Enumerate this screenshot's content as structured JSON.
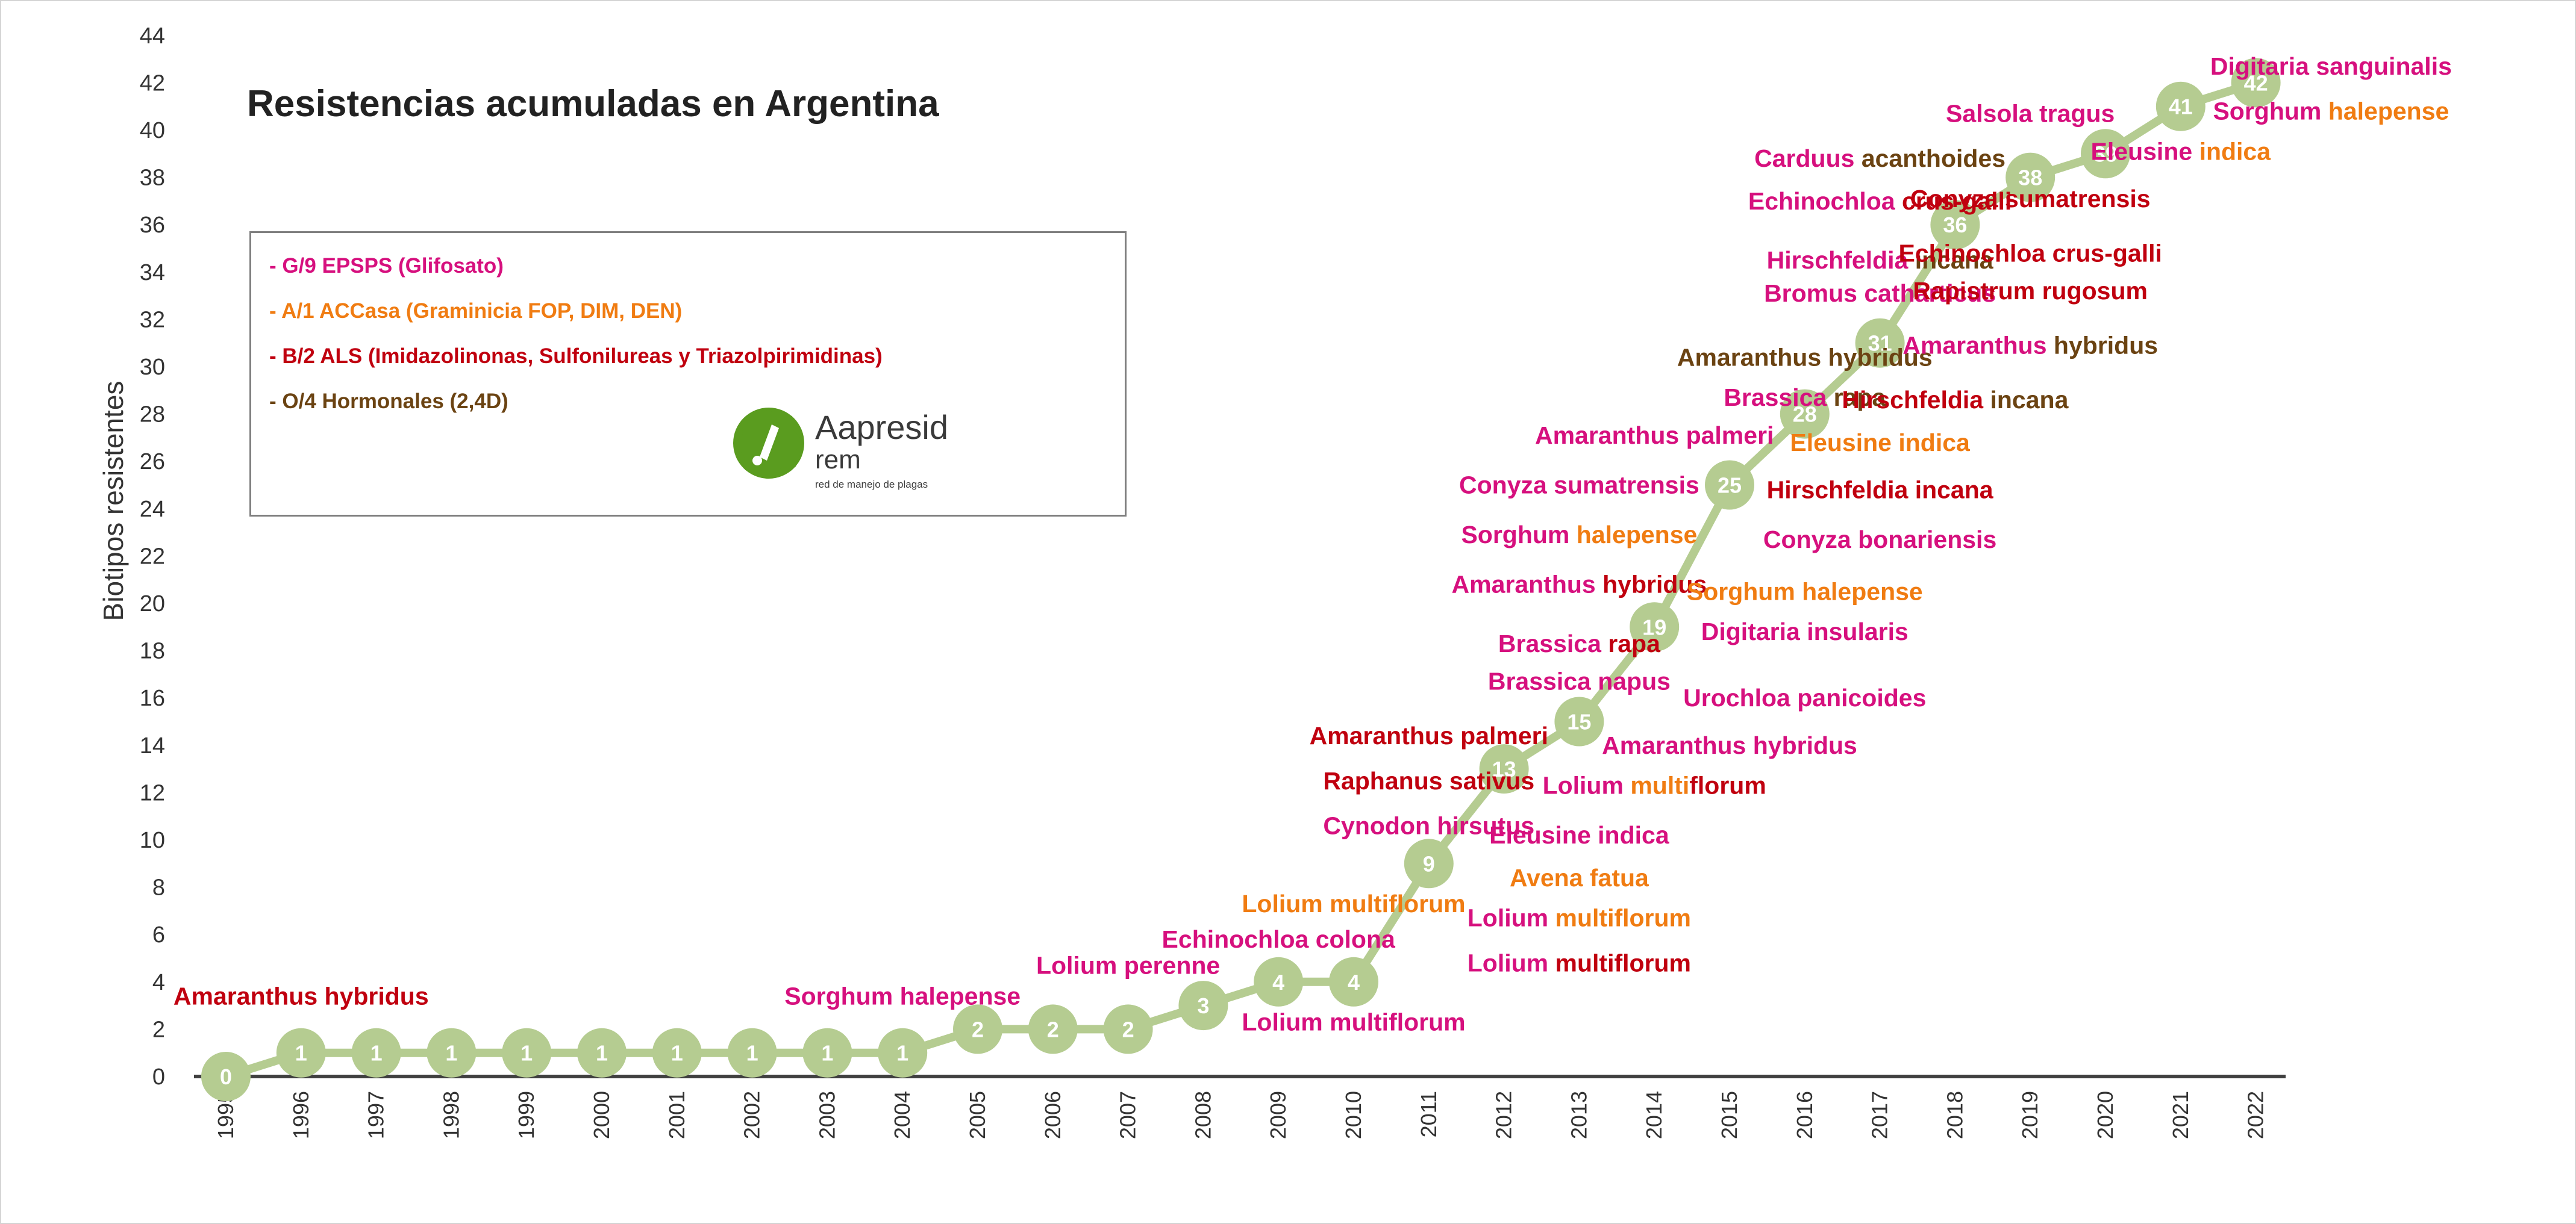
{
  "colors": {
    "glifosato": "#d6107e",
    "accasa": "#f07c12",
    "als": "#c0000f",
    "hormonales": "#6b4312",
    "line": "#b5cc91",
    "marker": "#b5cc91",
    "axis": "#404040"
  },
  "chart_data": {
    "type": "line",
    "title": "Resistencias acumuladas en Argentina",
    "xlabel": "",
    "ylabel": "Biotipos resistentes",
    "ylim": [
      0,
      44
    ],
    "yticks": [
      0,
      2,
      4,
      6,
      8,
      10,
      12,
      14,
      16,
      18,
      20,
      22,
      24,
      26,
      28,
      30,
      32,
      34,
      36,
      38,
      40,
      42,
      44
    ],
    "grid": false,
    "legend_placement": "top-left",
    "x": [
      "1995",
      "1996",
      "1997",
      "1998",
      "1999",
      "2000",
      "2001",
      "2002",
      "2003",
      "2004",
      "2005",
      "2006",
      "2007",
      "2008",
      "2009",
      "2010",
      "2011",
      "2012",
      "2013",
      "2014",
      "2015",
      "2016",
      "2017",
      "2018",
      "2019",
      "2020",
      "2021",
      "2022"
    ],
    "series": [
      {
        "values": [
          0,
          1,
          1,
          1,
          1,
          1,
          1,
          1,
          1,
          1,
          2,
          2,
          2,
          3,
          4,
          4,
          9,
          13,
          15,
          19,
          25,
          28,
          31,
          36,
          38,
          39,
          41,
          42
        ]
      }
    ],
    "legend": [
      {
        "text": "- G/9 EPSPS (Glifosato)",
        "color_key": "glifosato"
      },
      {
        "text": "- A/1 ACCasa (Graminicia FOP, DIM, DEN)",
        "color_key": "accasa"
      },
      {
        "text": "- B/2 ALS (Imidazolinonas, Sulfonilureas y Triazolpirimidinas)",
        "color_key": "als"
      },
      {
        "text": "- O/4 Hormonales (2,4D)",
        "color_key": "hormonales"
      }
    ],
    "annotations": [
      {
        "x": "1996",
        "y": 3.4,
        "parts": [
          {
            "t": "Amaranthus hybridus",
            "c": "als"
          }
        ]
      },
      {
        "x": "2004",
        "y": 3.4,
        "parts": [
          {
            "t": "Sorghum halepense",
            "c": "glifosato"
          }
        ]
      },
      {
        "x": "2007",
        "y": 4.7,
        "parts": [
          {
            "t": "Lolium perenne",
            "c": "glifosato"
          }
        ]
      },
      {
        "x": "2009",
        "y": 5.8,
        "parts": [
          {
            "t": "Echinochloa colona",
            "c": "glifosato"
          }
        ]
      },
      {
        "x": "2010",
        "y": 7.3,
        "parts": [
          {
            "t": "Lolium multiflorum",
            "c": "accasa"
          }
        ]
      },
      {
        "x": "2010",
        "y": 2.3,
        "parts": [
          {
            "t": "Lolium multiflorum",
            "c": "glifosato"
          }
        ]
      },
      {
        "x": "2011",
        "y": 10.6,
        "parts": [
          {
            "t": "Cynodon hirsutus",
            "c": "glifosato"
          }
        ]
      },
      {
        "x": "2011",
        "y": 12.5,
        "parts": [
          {
            "t": "Raphanus sativus",
            "c": "als"
          }
        ]
      },
      {
        "x": "2011",
        "y": 14.4,
        "parts": [
          {
            "t": "Amaranthus palmeri",
            "c": "als"
          }
        ]
      },
      {
        "x": "2013",
        "y": 4.8,
        "parts": [
          {
            "t": "Lolium ",
            "c": "glifosato"
          },
          {
            "t": "multiflorum",
            "c": "als"
          }
        ]
      },
      {
        "x": "2013",
        "y": 6.7,
        "parts": [
          {
            "t": "Lolium ",
            "c": "glifosato"
          },
          {
            "t": "multiflorum",
            "c": "accasa"
          }
        ]
      },
      {
        "x": "2013",
        "y": 8.4,
        "parts": [
          {
            "t": "Avena fatua",
            "c": "accasa"
          }
        ]
      },
      {
        "x": "2013",
        "y": 10.2,
        "parts": [
          {
            "t": "Eleusine indica",
            "c": "glifosato"
          }
        ]
      },
      {
        "x": "2014",
        "y": 12.3,
        "parts": [
          {
            "t": "Lolium ",
            "c": "glifosato"
          },
          {
            "t": "multi",
            "c": "accasa"
          },
          {
            "t": "florum",
            "c": "als"
          }
        ]
      },
      {
        "x": "2013",
        "y": 16.7,
        "parts": [
          {
            "t": "Brassica napus",
            "c": "glifosato"
          }
        ]
      },
      {
        "x": "2013",
        "y": 18.3,
        "parts": [
          {
            "t": "Brassica ",
            "c": "glifosato"
          },
          {
            "t": "rapa",
            "c": "als"
          }
        ]
      },
      {
        "x": "2013",
        "y": 20.8,
        "parts": [
          {
            "t": "Amaranthus ",
            "c": "glifosato"
          },
          {
            "t": "hybridus",
            "c": "als"
          }
        ]
      },
      {
        "x": "2013",
        "y": 22.9,
        "parts": [
          {
            "t": "Sorghum ",
            "c": "glifosato"
          },
          {
            "t": "halepense",
            "c": "accasa"
          }
        ]
      },
      {
        "x": "2013",
        "y": 25.0,
        "parts": [
          {
            "t": "Conyza sumatrensis",
            "c": "glifosato"
          }
        ]
      },
      {
        "x": "2014",
        "y": 27.1,
        "parts": [
          {
            "t": "Amaranthus palmeri",
            "c": "glifosato"
          }
        ]
      },
      {
        "x": "2016",
        "y": 16.0,
        "parts": [
          {
            "t": "Urochloa panicoides",
            "c": "glifosato"
          }
        ]
      },
      {
        "x": "2015",
        "y": 14.0,
        "parts": [
          {
            "t": "Amaranthus hybridus",
            "c": "glifosato"
          }
        ]
      },
      {
        "x": "2016",
        "y": 18.8,
        "parts": [
          {
            "t": "Digitaria insularis",
            "c": "glifosato"
          }
        ]
      },
      {
        "x": "2016",
        "y": 20.5,
        "parts": [
          {
            "t": "Sorghum halepense",
            "c": "accasa"
          }
        ]
      },
      {
        "x": "2017",
        "y": 22.7,
        "parts": [
          {
            "t": "Conyza bonariensis",
            "c": "glifosato"
          }
        ]
      },
      {
        "x": "2017",
        "y": 24.8,
        "parts": [
          {
            "t": "Hirschfeldia incana",
            "c": "als"
          }
        ]
      },
      {
        "x": "2017",
        "y": 26.8,
        "parts": [
          {
            "t": "Eleusine indica",
            "c": "accasa"
          }
        ]
      },
      {
        "x": "2016",
        "y": 28.7,
        "parts": [
          {
            "t": "Brassica ",
            "c": "glifosato"
          },
          {
            "t": "rapa",
            "c": "hormonales"
          }
        ]
      },
      {
        "x": "2016",
        "y": 30.4,
        "parts": [
          {
            "t": "Amaranthus hybridus",
            "c": "hormonales"
          }
        ]
      },
      {
        "x": "2018",
        "y": 28.6,
        "parts": [
          {
            "t": "Hirschfeldia ",
            "c": "als"
          },
          {
            "t": "incana",
            "c": "hormonales"
          }
        ]
      },
      {
        "x": "2019",
        "y": 30.9,
        "parts": [
          {
            "t": "Amaranthus ",
            "c": "glifosato"
          },
          {
            "t": "hybridus",
            "c": "hormonales"
          }
        ]
      },
      {
        "x": "2017",
        "y": 33.1,
        "parts": [
          {
            "t": "Bromus catharticus",
            "c": "glifosato"
          }
        ]
      },
      {
        "x": "2017",
        "y": 34.5,
        "parts": [
          {
            "t": "Hirschfeldia ",
            "c": "glifosato"
          },
          {
            "t": "incana",
            "c": "hormonales"
          }
        ]
      },
      {
        "x": "2019",
        "y": 33.2,
        "parts": [
          {
            "t": "Rapistrum rugosum",
            "c": "als"
          }
        ]
      },
      {
        "x": "2019",
        "y": 34.8,
        "parts": [
          {
            "t": "Echinochloa crus-galli",
            "c": "als"
          }
        ]
      },
      {
        "x": "2017",
        "y": 37.0,
        "parts": [
          {
            "t": "Echinochloa ",
            "c": "glifosato"
          },
          {
            "t": "crus-galli",
            "c": "als"
          }
        ]
      },
      {
        "x": "2017",
        "y": 38.8,
        "parts": [
          {
            "t": "Carduus ",
            "c": "glifosato"
          },
          {
            "t": "acanthoides",
            "c": "hormonales"
          }
        ]
      },
      {
        "x": "2019",
        "y": 37.1,
        "parts": [
          {
            "t": "Conyza sumatrensis",
            "c": "als"
          }
        ]
      },
      {
        "x": "2019",
        "y": 40.7,
        "parts": [
          {
            "t": "Salsola tragus",
            "c": "glifosato"
          }
        ]
      },
      {
        "x": "2021",
        "y": 39.1,
        "parts": [
          {
            "t": "Eleusine ",
            "c": "glifosato"
          },
          {
            "t": "indica",
            "c": "accasa"
          }
        ]
      },
      {
        "x": "2023",
        "y": 40.8,
        "parts": [
          {
            "t": "Sorghum ",
            "c": "glifosato"
          },
          {
            "t": "halepense",
            "c": "accasa"
          }
        ]
      },
      {
        "x": "2023",
        "y": 42.7,
        "parts": [
          {
            "t": "Digitaria sanguinalis",
            "c": "glifosato"
          }
        ]
      }
    ]
  },
  "logo": {
    "name": "Aapresid",
    "sub": "rem",
    "tagline": "red de manejo de plagas"
  }
}
